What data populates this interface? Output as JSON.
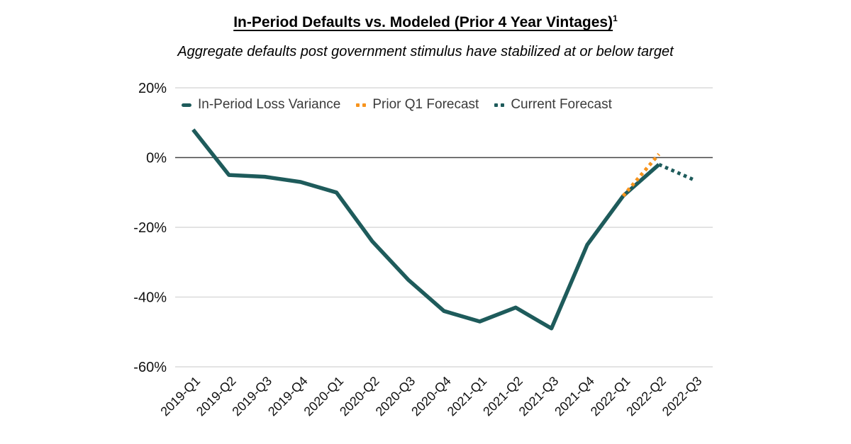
{
  "header": {
    "title": "In-Period Defaults vs. Modeled (Prior 4 Year Vintages)",
    "footnote_marker": "1",
    "subtitle": "Aggregate defaults post government stimulus have stabilized at or below target"
  },
  "chart_data": {
    "type": "line",
    "title": "In-Period Defaults vs. Modeled (Prior 4 Year Vintages)",
    "subtitle": "Aggregate defaults post government stimulus have stabilized at or below target",
    "categories": [
      "2019-Q1",
      "2019-Q2",
      "2019-Q3",
      "2019-Q4",
      "2020-Q1",
      "2020-Q2",
      "2020-Q3",
      "2020-Q4",
      "2021-Q1",
      "2021-Q2",
      "2021-Q3",
      "2021-Q4",
      "2022-Q1",
      "2022-Q2",
      "2022-Q3"
    ],
    "series": [
      {
        "name": "In-Period Loss Variance",
        "style": "solid",
        "color": "#1E5B5B",
        "values": [
          8,
          -5,
          -5.5,
          -7,
          -10,
          -24,
          -35,
          -44,
          -47,
          -43,
          -49,
          -25,
          -11,
          -2,
          null
        ]
      },
      {
        "name": "Prior Q1 Forecast",
        "style": "dotted",
        "color": "#F7941E",
        "values": [
          null,
          null,
          null,
          null,
          null,
          null,
          null,
          null,
          null,
          null,
          null,
          null,
          -11,
          1,
          null
        ]
      },
      {
        "name": "Current Forecast",
        "style": "dotted",
        "color": "#1E5B5B",
        "values": [
          null,
          null,
          null,
          null,
          null,
          null,
          null,
          null,
          null,
          null,
          null,
          null,
          null,
          -2,
          -6.5
        ]
      }
    ],
    "ylim": [
      -60,
      20
    ],
    "yticks": [
      20,
      0,
      -20,
      -40,
      -60
    ],
    "ytick_labels": [
      "20%",
      "0%",
      "-20%",
      "-40%",
      "-60%"
    ],
    "xlabel": "",
    "ylabel": "",
    "grid": true,
    "legend_position": "top-inside",
    "colors": {
      "gridline": "#DADADA",
      "zero_line": "#444444",
      "axis_text": "#111111",
      "legend_text": "#3b3b3b"
    }
  }
}
